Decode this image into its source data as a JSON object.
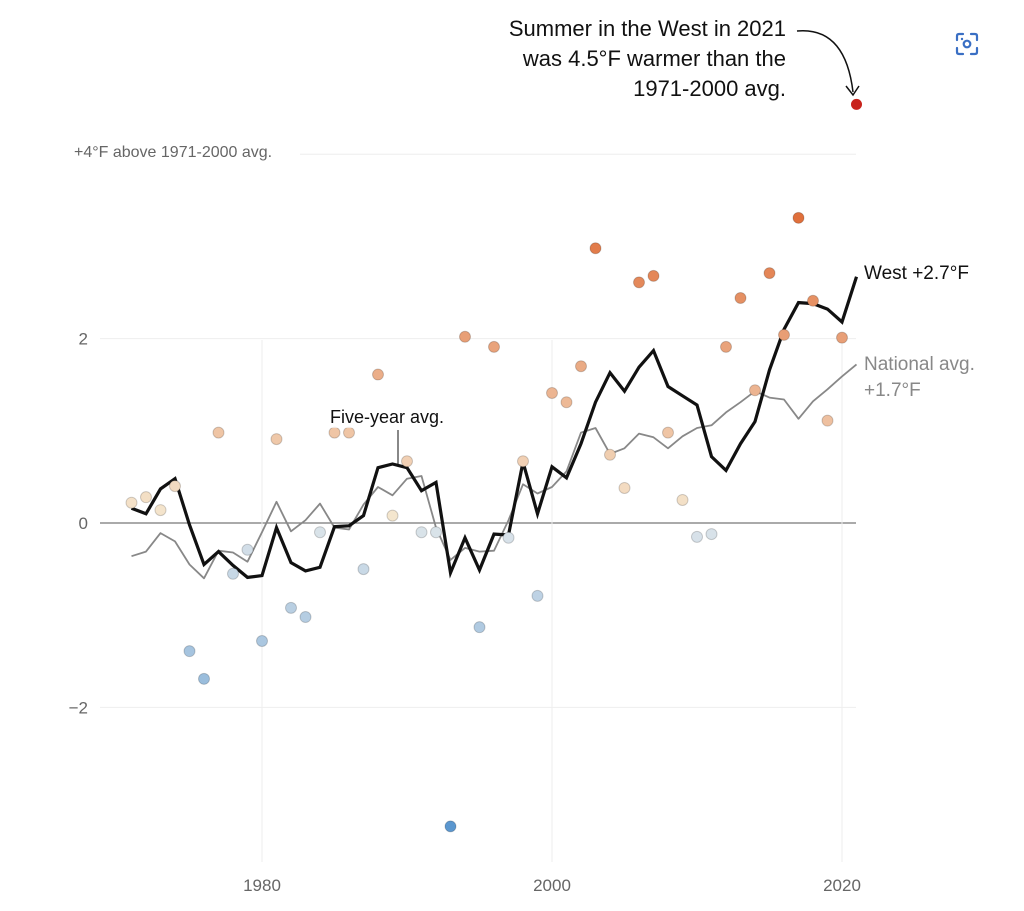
{
  "chart_data": {
    "type": "scatter",
    "title": "",
    "xlabel": "",
    "ylabel": "°F above 1971-2000 avg.",
    "xlim": [
      1970,
      2021
    ],
    "ylim": [
      -3.5,
      4.6
    ],
    "x_ticks": [
      1980,
      2000,
      2020
    ],
    "x_tick_labels": [
      "1980",
      "2000",
      "2020"
    ],
    "y_ticks": [
      -2,
      0,
      2,
      4
    ],
    "y_tick_labels": [
      "−2",
      "0",
      "2",
      "+4°F above 1971-2000 avg."
    ],
    "grid": true,
    "years": [
      1971,
      1972,
      1973,
      1974,
      1975,
      1976,
      1977,
      1978,
      1979,
      1980,
      1981,
      1982,
      1983,
      1984,
      1985,
      1986,
      1987,
      1988,
      1989,
      1990,
      1991,
      1992,
      1993,
      1994,
      1995,
      1996,
      1997,
      1998,
      1999,
      2000,
      2001,
      2002,
      2003,
      2004,
      2005,
      2006,
      2007,
      2008,
      2009,
      2010,
      2011,
      2012,
      2013,
      2014,
      2015,
      2016,
      2017,
      2018,
      2019,
      2020,
      2021
    ],
    "series": [
      {
        "name": "West summer anomaly",
        "kind": "dots",
        "values": [
          0.22,
          0.28,
          0.14,
          0.4,
          -1.39,
          -1.69,
          0.98,
          -0.55,
          -0.29,
          -1.28,
          0.91,
          -0.92,
          -1.02,
          -0.1,
          0.98,
          0.98,
          -0.5,
          1.61,
          0.08,
          0.67,
          -0.1,
          -0.1,
          -3.29,
          2.02,
          -1.13,
          1.91,
          -0.16,
          0.67,
          -0.79,
          1.41,
          1.31,
          1.7,
          2.98,
          0.74,
          0.38,
          2.61,
          2.68,
          0.98,
          0.25,
          -0.15,
          -0.12,
          1.91,
          2.44,
          1.44,
          2.71,
          2.04,
          3.31,
          2.41,
          1.11,
          2.01,
          4.54
        ]
      },
      {
        "name": "West five-year avg.",
        "kind": "line",
        "values": [
          0.16,
          0.1,
          0.37,
          0.48,
          -0.02,
          -0.45,
          -0.31,
          -0.46,
          -0.59,
          -0.57,
          -0.05,
          -0.43,
          -0.52,
          -0.48,
          -0.04,
          -0.03,
          0.08,
          0.6,
          0.64,
          0.6,
          0.35,
          0.44,
          -0.54,
          -0.16,
          -0.51,
          -0.12,
          -0.13,
          0.66,
          0.1,
          0.61,
          0.49,
          0.86,
          1.31,
          1.63,
          1.43,
          1.69,
          1.87,
          1.48,
          1.38,
          1.28,
          0.72,
          0.57,
          0.86,
          1.1,
          1.66,
          2.1,
          2.39,
          2.38,
          2.32,
          2.18,
          2.67
        ]
      },
      {
        "name": "National avg.",
        "kind": "line",
        "values": [
          -0.36,
          -0.31,
          -0.11,
          -0.2,
          -0.45,
          -0.6,
          -0.3,
          -0.32,
          -0.42,
          -0.1,
          0.23,
          -0.09,
          0.03,
          0.21,
          -0.05,
          -0.07,
          0.2,
          0.39,
          0.3,
          0.48,
          0.51,
          -0.05,
          -0.4,
          -0.27,
          -0.31,
          -0.3,
          0.03,
          0.42,
          0.32,
          0.39,
          0.56,
          0.98,
          1.03,
          0.75,
          0.81,
          0.97,
          0.93,
          0.81,
          0.94,
          1.03,
          1.06,
          1.2,
          1.31,
          1.43,
          1.36,
          1.34,
          1.13,
          1.32,
          1.45,
          1.59,
          1.72
        ]
      }
    ],
    "annotations": [
      {
        "text": "Summer in the West in 2021 was 4.5°F warmer than the 1971-2000 avg.",
        "target_year": 2021,
        "target_value": 4.54
      },
      {
        "text": "Five-year avg.",
        "target_year": 1989,
        "target_value": 0.64
      },
      {
        "text": "West +2.7°F",
        "target_year": 2021,
        "target_value": 2.67
      },
      {
        "text": "National avg. +1.7°F",
        "target_year": 2021,
        "target_value": 1.72
      }
    ],
    "colors": {
      "highlight_dot": "#c8231c",
      "west_line": "#111111",
      "national_line": "#888888",
      "zero_line": "#777777",
      "grid": "#eeeeee",
      "warm_max": "#e0703c",
      "warm_min": "#f5e9d2",
      "cool_min": "#dde5ea",
      "cool_max": "#5b97cf"
    }
  },
  "labels": {
    "annotation_line1": "Summer in the West in 2021",
    "annotation_line2": "was 4.5°F warmer than the",
    "annotation_line3": "1971-2000 avg.",
    "y_top_label": "+4°F above 1971-2000 avg.",
    "west_label": "West +2.7°F",
    "national_label_line1": "National avg.",
    "national_label_line2": "+1.7°F",
    "five_year_label": "Five-year avg."
  },
  "controls": {
    "focus_icon": "focus-view-icon"
  }
}
